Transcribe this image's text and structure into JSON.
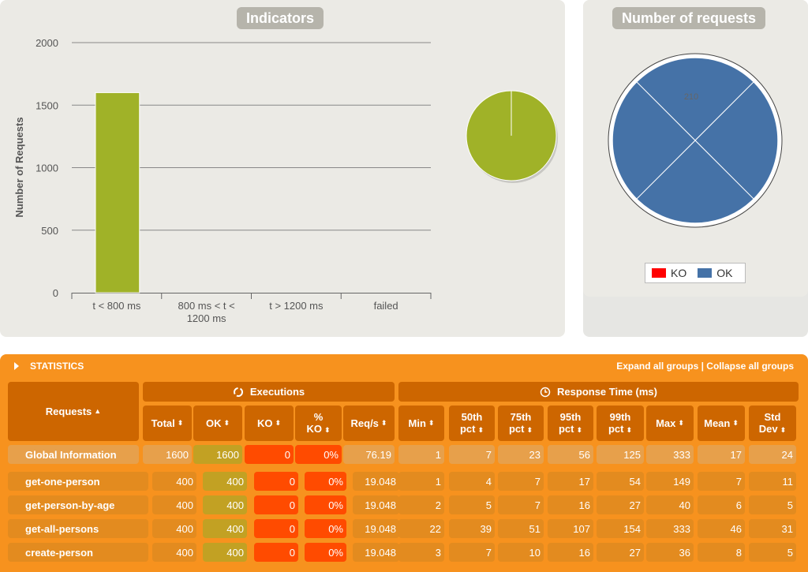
{
  "indicators": {
    "title": "Indicators",
    "chart_data": {
      "type": "bar",
      "categories": [
        "t < 800 ms",
        "800 ms < t < 1200 ms",
        "t > 1200 ms",
        "failed"
      ],
      "category_lines": [
        [
          "t < 800 ms"
        ],
        [
          "800 ms < t <",
          "1200 ms"
        ],
        [
          "t > 1200 ms"
        ],
        [
          "failed"
        ]
      ],
      "values": [
        1600,
        0,
        0,
        0
      ],
      "ylabel": "Number of Requests",
      "ylim": [
        0,
        2000
      ],
      "yticks": [
        "0",
        "500",
        "1000",
        "1500",
        "2000"
      ],
      "grid": true,
      "bar_color": "#a0b228"
    },
    "pie_data": {
      "type": "pie",
      "slices": [
        1600,
        0,
        0,
        0
      ],
      "colors": [
        "#a0b228",
        "#ffdd00",
        "#ff9916",
        "#ff0000"
      ]
    }
  },
  "requests": {
    "title": "Number of requests",
    "chart_data": {
      "type": "polar",
      "categories": [
        "get-one-person",
        "get-person-by-age",
        "get-all-persons",
        "create-person"
      ],
      "series": [
        {
          "name": "KO",
          "values": [
            0,
            0,
            0,
            0
          ],
          "color": "#ff0000"
        },
        {
          "name": "OK",
          "values": [
            400,
            400,
            400,
            400
          ],
          "color": "#4572a7"
        }
      ],
      "tick_label": "210"
    },
    "legend": {
      "ko": "KO",
      "ok": "OK",
      "ko_color": "#ff0000",
      "ok_color": "#4572a7"
    }
  },
  "stats": {
    "title": "STATISTICS",
    "expand": "Expand all groups",
    "sep": " | ",
    "collapse": "Collapse all groups",
    "requests_header": "Requests",
    "executions_header": "Executions",
    "response_header": "Response Time (ms)",
    "columns": [
      [
        "Total"
      ],
      [
        "OK"
      ],
      [
        "KO"
      ],
      [
        "%",
        "KO"
      ],
      [
        "Req/s"
      ],
      [
        "Min"
      ],
      [
        "50th",
        "pct"
      ],
      [
        "75th",
        "pct"
      ],
      [
        "95th",
        "pct"
      ],
      [
        "99th",
        "pct"
      ],
      [
        "Max"
      ],
      [
        "Mean"
      ],
      [
        "Std",
        "Dev"
      ]
    ],
    "global": {
      "name": "Global Information",
      "values": [
        "1600",
        "1600",
        "0",
        "0%",
        "76.19",
        "1",
        "7",
        "23",
        "56",
        "125",
        "333",
        "17",
        "24"
      ]
    },
    "rows": [
      {
        "name": "get-one-person",
        "values": [
          "400",
          "400",
          "0",
          "0%",
          "19.048",
          "1",
          "4",
          "7",
          "17",
          "54",
          "149",
          "7",
          "11"
        ]
      },
      {
        "name": "get-person-by-age",
        "values": [
          "400",
          "400",
          "0",
          "0%",
          "19.048",
          "2",
          "5",
          "7",
          "16",
          "27",
          "40",
          "6",
          "5"
        ]
      },
      {
        "name": "get-all-persons",
        "values": [
          "400",
          "400",
          "0",
          "0%",
          "19.048",
          "22",
          "39",
          "51",
          "107",
          "154",
          "333",
          "46",
          "31"
        ]
      },
      {
        "name": "create-person",
        "values": [
          "400",
          "400",
          "0",
          "0%",
          "19.048",
          "3",
          "7",
          "10",
          "16",
          "27",
          "36",
          "8",
          "5"
        ]
      }
    ],
    "colors": {
      "header": "#cd6600",
      "orange": "#f7921e",
      "row": "#e38b1f",
      "ok": "#c2a123",
      "ko": "#ff4b00"
    }
  }
}
